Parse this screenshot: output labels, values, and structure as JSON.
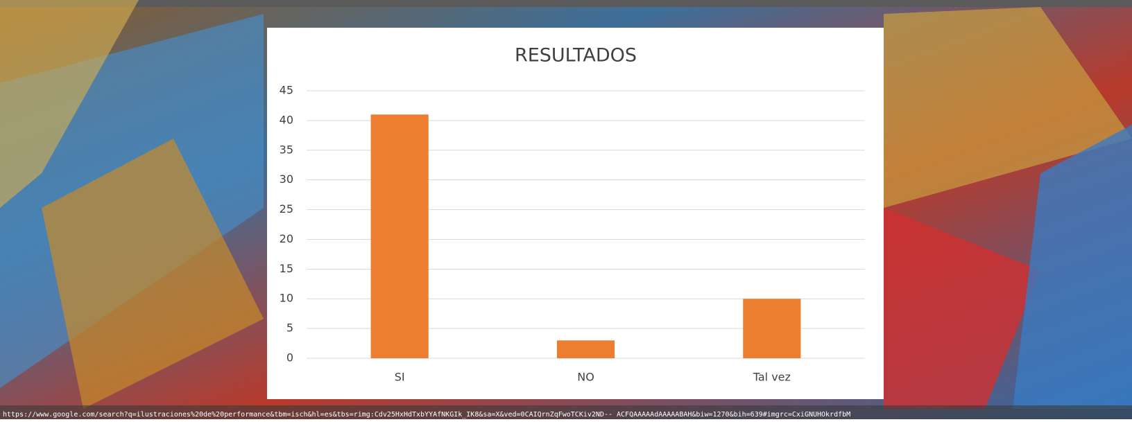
{
  "chart_data": {
    "type": "bar",
    "title": "RESULTADOS",
    "categories": [
      "SI",
      "NO",
      "Tal vez"
    ],
    "values": [
      41,
      3,
      10
    ],
    "color": "#ed7d31",
    "ylim": [
      0,
      45
    ],
    "yticks": [
      0,
      5,
      10,
      15,
      20,
      25,
      30,
      35,
      40,
      45
    ],
    "grid": true
  },
  "url": "https://www.google.com/search?q=ilustraciones%20de%20performance&tbm=isch&hl=es&tbs=rimg:Cdv25HxHdTxbYYAfNKGIk_IK8&sa=X&ved=0CAIQrnZqFwoTCKiv2ND-- ACFQAAAAAdAAAAABAH&biw=1270&bih=639#imgrc=CxiGNUHOkrdfbM"
}
